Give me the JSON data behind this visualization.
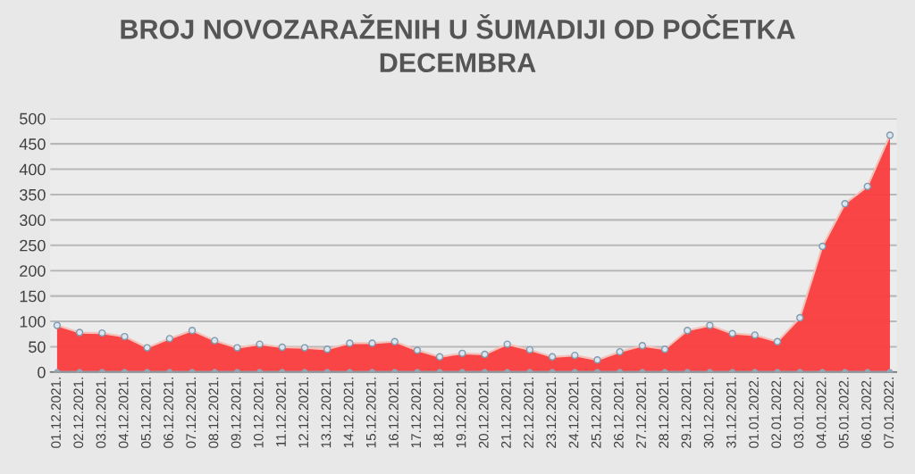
{
  "chart_data": {
    "type": "area",
    "title": "BROJ NOVOZARAŽENIH U ŠUMADIJI OD POČETKA DECEMBRA",
    "categories": [
      "01.12.2021.",
      "02.12.2021.",
      "03.12.2021.",
      "04.12.2021.",
      "05.12.2021.",
      "06.12.2021.",
      "07.12.2021.",
      "08.12.2021.",
      "09.12.2021.",
      "10.12.2021.",
      "11.12.2021.",
      "12.12.2021.",
      "13.12.2021.",
      "14.12.2021.",
      "15.12.2021.",
      "16.12.2021.",
      "17.12.2021.",
      "18.12.2021.",
      "19.12.2021.",
      "20.12.2021.",
      "21.12.2021.",
      "22.12.2021.",
      "23.12.2021.",
      "24.12.2021.",
      "25.12.2021.",
      "26.12.2021.",
      "27.12.2021.",
      "28.12.2021.",
      "29.12.2021.",
      "30.12.2021.",
      "31.12.2021.",
      "01.01.2022.",
      "02.01.2022.",
      "03.01.2022.",
      "04.01.2022.",
      "05.01.2022.",
      "06.01.2022.",
      "07.01.2022."
    ],
    "series": [
      {
        "color": "#fa3c3c",
        "values": [
          92,
          78,
          77,
          70,
          48,
          66,
          82,
          62,
          48,
          55,
          49,
          48,
          45,
          57,
          57,
          60,
          43,
          30,
          37,
          35,
          55,
          44,
          30,
          33,
          24,
          40,
          52,
          45,
          82,
          92,
          76,
          73,
          60,
          107,
          248,
          332,
          366,
          467
        ]
      },
      {
        "type": "line",
        "color": "#8fa8b8",
        "values": [
          0,
          0,
          0,
          0,
          0,
          0,
          0,
          0,
          0,
          0,
          0,
          0,
          0,
          0,
          0,
          0,
          0,
          0,
          0,
          0,
          0,
          0,
          0,
          0,
          0,
          0,
          0,
          0,
          0,
          0,
          0,
          0,
          0,
          0,
          0,
          0,
          0,
          0
        ]
      }
    ],
    "ylim": [
      0,
      500
    ],
    "yticks": [
      0,
      50,
      100,
      150,
      200,
      250,
      300,
      350,
      400,
      450,
      500
    ],
    "grid": "y",
    "marker": "circle",
    "legend": false
  }
}
